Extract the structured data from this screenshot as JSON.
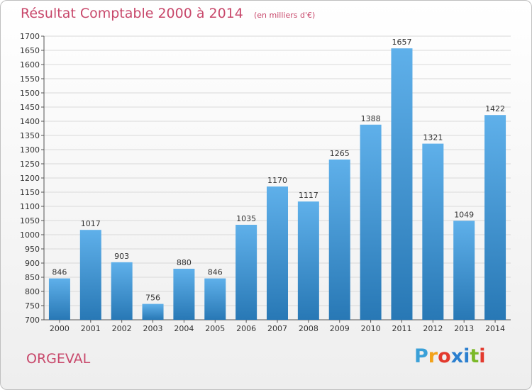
{
  "title": "Résultat Comptable 2000 à 2014",
  "subtitle": "(en milliers d'€)",
  "footer_label": "ORGEVAL",
  "logo": {
    "letters": [
      "P",
      "r",
      "o",
      "x",
      "i",
      "t",
      "i"
    ],
    "colors": [
      "#3aa0d8",
      "#f2a21a",
      "#e33a2e",
      "#2b7fcf",
      "#2b7fcf",
      "#7bb928",
      "#e33a2e"
    ]
  },
  "colors": {
    "bar_top": "#5fb0ea",
    "bar_bottom": "#2878b5",
    "text": "#333333",
    "title": "#c8486b",
    "grid": "#d9d9d9"
  },
  "chart_data": {
    "type": "bar",
    "categories": [
      "2000",
      "2001",
      "2002",
      "2003",
      "2004",
      "2005",
      "2006",
      "2007",
      "2008",
      "2009",
      "2010",
      "2011",
      "2012",
      "2013",
      "2014"
    ],
    "values": [
      846,
      1017,
      903,
      756,
      880,
      846,
      1035,
      1170,
      1117,
      1265,
      1388,
      1657,
      1321,
      1049,
      1422
    ],
    "ylim": [
      700,
      1700
    ],
    "yticks": [
      700,
      750,
      800,
      850,
      900,
      950,
      1000,
      1050,
      1100,
      1150,
      1200,
      1250,
      1300,
      1350,
      1400,
      1450,
      1500,
      1550,
      1600,
      1650,
      1700
    ],
    "grid": true
  }
}
